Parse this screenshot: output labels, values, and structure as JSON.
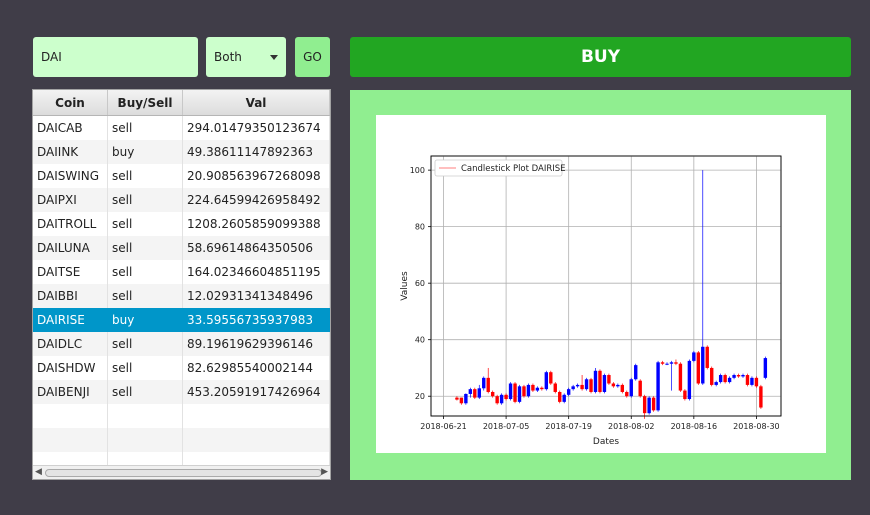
{
  "search": {
    "value": "DAI"
  },
  "filter": {
    "selected": "Both"
  },
  "go_label": "GO",
  "buy_label": "BUY",
  "colors": {
    "background": "#403d48",
    "buy": "#22a622",
    "panel": "#90ee90",
    "input": "#ccffcc",
    "selected_row": "#0096c9",
    "up_candle": "#0000ff",
    "down_candle": "#ff0000"
  },
  "table": {
    "headers": [
      "Coin",
      "Buy/Sell",
      "Val"
    ],
    "rows": [
      [
        "DAICAB",
        "sell",
        "294.01479350123674"
      ],
      [
        "DAIINK",
        "buy",
        "49.38611147892363"
      ],
      [
        "DAISWING",
        "sell",
        "20.908563967268098"
      ],
      [
        "DAIPXI",
        "sell",
        "224.64599426958492"
      ],
      [
        "DAITROLL",
        "sell",
        "1208.2605859099388"
      ],
      [
        "DAILUNA",
        "sell",
        "58.69614864350506"
      ],
      [
        "DAITSE",
        "sell",
        "164.02346604851195"
      ],
      [
        "DAIBBI",
        "sell",
        "12.02931341348496"
      ],
      [
        "DAIRISE",
        "buy",
        "33.59556735937983"
      ],
      [
        "DAIDLC",
        "sell",
        "89.19619629396146"
      ],
      [
        "DAISHDW",
        "sell",
        "82.62985540002144"
      ],
      [
        "DAIBENJI",
        "sell",
        "453.20591917426964"
      ]
    ],
    "selected_index": 8,
    "empty_rows": 3
  },
  "chart_data": {
    "type": "candlestick",
    "legend": "Candlestick Plot DAIRISE",
    "legend_position": "top-left",
    "xlabel": "Dates",
    "ylabel": "Values",
    "x_ticks": [
      "2018-06-21",
      "2018-07-05",
      "2018-07-19",
      "2018-08-02",
      "2018-08-16",
      "2018-08-30"
    ],
    "y_ticks": [
      20,
      40,
      60,
      80,
      100
    ],
    "ylim": [
      13,
      105
    ],
    "grid": true,
    "start_date": "2018-06-21",
    "candles": [
      {
        "date": "2018-06-24",
        "open": 19.5,
        "close": 18.8,
        "high": 20.0,
        "low": 18.5
      },
      {
        "date": "2018-06-25",
        "open": 19.5,
        "close": 17.5,
        "high": 19.5,
        "low": 17.0
      },
      {
        "date": "2018-06-26",
        "open": 17.5,
        "close": 20.8,
        "high": 21.0,
        "low": 17.0
      },
      {
        "date": "2018-06-27",
        "open": 20.8,
        "close": 22.5,
        "high": 23.0,
        "low": 19.5
      },
      {
        "date": "2018-06-28",
        "open": 22.5,
        "close": 19.5,
        "high": 23.0,
        "low": 19.0
      },
      {
        "date": "2018-06-29",
        "open": 19.5,
        "close": 22.8,
        "high": 24.0,
        "low": 19.0
      },
      {
        "date": "2018-06-30",
        "open": 22.8,
        "close": 26.5,
        "high": 27.0,
        "low": 22.0
      },
      {
        "date": "2018-07-01",
        "open": 26.5,
        "close": 21.5,
        "high": 30.0,
        "low": 21.0
      },
      {
        "date": "2018-07-02",
        "open": 21.5,
        "close": 20.0,
        "high": 22.0,
        "low": 19.5
      },
      {
        "date": "2018-07-03",
        "open": 20.0,
        "close": 17.5,
        "high": 20.5,
        "low": 17.0
      },
      {
        "date": "2018-07-04",
        "open": 17.5,
        "close": 20.5,
        "high": 21.0,
        "low": 17.0
      },
      {
        "date": "2018-07-05",
        "open": 20.5,
        "close": 19.0,
        "high": 21.0,
        "low": 18.5
      },
      {
        "date": "2018-07-06",
        "open": 19.0,
        "close": 24.5,
        "high": 25.0,
        "low": 18.5
      },
      {
        "date": "2018-07-07",
        "open": 24.5,
        "close": 18.0,
        "high": 25.0,
        "low": 17.5
      },
      {
        "date": "2018-07-08",
        "open": 18.0,
        "close": 23.5,
        "high": 24.0,
        "low": 17.5
      },
      {
        "date": "2018-07-09",
        "open": 23.5,
        "close": 20.0,
        "high": 24.0,
        "low": 19.5
      },
      {
        "date": "2018-07-10",
        "open": 20.0,
        "close": 24.0,
        "high": 24.5,
        "low": 19.5
      },
      {
        "date": "2018-07-11",
        "open": 24.0,
        "close": 22.0,
        "high": 24.5,
        "low": 21.5
      },
      {
        "date": "2018-07-12",
        "open": 22.0,
        "close": 23.0,
        "high": 23.5,
        "low": 21.5
      },
      {
        "date": "2018-07-13",
        "open": 23.0,
        "close": 22.5,
        "high": 23.5,
        "low": 22.0
      },
      {
        "date": "2018-07-14",
        "open": 22.5,
        "close": 28.5,
        "high": 29.0,
        "low": 22.0
      },
      {
        "date": "2018-07-15",
        "open": 28.5,
        "close": 24.5,
        "high": 29.0,
        "low": 24.0
      },
      {
        "date": "2018-07-16",
        "open": 24.5,
        "close": 21.5,
        "high": 25.0,
        "low": 21.0
      },
      {
        "date": "2018-07-17",
        "open": 21.5,
        "close": 18.0,
        "high": 22.0,
        "low": 17.5
      },
      {
        "date": "2018-07-18",
        "open": 18.0,
        "close": 20.5,
        "high": 21.0,
        "low": 17.5
      },
      {
        "date": "2018-07-19",
        "open": 20.5,
        "close": 22.5,
        "high": 23.0,
        "low": 20.0
      },
      {
        "date": "2018-07-20",
        "open": 22.5,
        "close": 23.5,
        "high": 24.0,
        "low": 22.0
      },
      {
        "date": "2018-07-21",
        "open": 23.5,
        "close": 24.0,
        "high": 24.5,
        "low": 23.0
      },
      {
        "date": "2018-07-22",
        "open": 24.0,
        "close": 22.5,
        "high": 27.5,
        "low": 22.0
      },
      {
        "date": "2018-07-23",
        "open": 22.5,
        "close": 26.0,
        "high": 26.5,
        "low": 22.0
      },
      {
        "date": "2018-07-24",
        "open": 26.0,
        "close": 21.5,
        "high": 26.5,
        "low": 21.0
      },
      {
        "date": "2018-07-25",
        "open": 21.5,
        "close": 29.0,
        "high": 30.0,
        "low": 21.0
      },
      {
        "date": "2018-07-26",
        "open": 29.0,
        "close": 21.5,
        "high": 29.5,
        "low": 21.0
      },
      {
        "date": "2018-07-27",
        "open": 21.5,
        "close": 27.5,
        "high": 28.0,
        "low": 21.0
      },
      {
        "date": "2018-07-28",
        "open": 27.5,
        "close": 24.5,
        "high": 28.0,
        "low": 24.0
      },
      {
        "date": "2018-07-29",
        "open": 24.5,
        "close": 23.5,
        "high": 25.0,
        "low": 23.0
      },
      {
        "date": "2018-07-30",
        "open": 23.5,
        "close": 24.0,
        "high": 24.5,
        "low": 23.0
      },
      {
        "date": "2018-07-31",
        "open": 24.0,
        "close": 21.5,
        "high": 24.5,
        "low": 21.0
      },
      {
        "date": "2018-08-01",
        "open": 21.5,
        "close": 20.0,
        "high": 22.0,
        "low": 19.5
      },
      {
        "date": "2018-08-02",
        "open": 20.0,
        "close": 26.0,
        "high": 26.5,
        "low": 19.5
      },
      {
        "date": "2018-08-03",
        "open": 26.0,
        "close": 31.0,
        "high": 31.5,
        "low": 25.5
      },
      {
        "date": "2018-08-04",
        "open": 25.5,
        "close": 20.0,
        "high": 26.0,
        "low": 19.5
      },
      {
        "date": "2018-08-05",
        "open": 20.0,
        "close": 14.0,
        "high": 20.5,
        "low": 12.0
      },
      {
        "date": "2018-08-06",
        "open": 14.0,
        "close": 19.5,
        "high": 20.0,
        "low": 13.5
      },
      {
        "date": "2018-08-07",
        "open": 19.5,
        "close": 15.0,
        "high": 20.0,
        "low": 14.5
      },
      {
        "date": "2018-08-08",
        "open": 15.0,
        "close": 32.0,
        "high": 32.5,
        "low": 14.5
      },
      {
        "date": "2018-08-09",
        "open": 32.0,
        "close": 31.5,
        "high": 32.5,
        "low": 31.0
      },
      {
        "date": "2018-08-10",
        "open": 31.5,
        "close": 31.5,
        "high": 32.0,
        "low": 31.0
      },
      {
        "date": "2018-08-11",
        "open": 31.5,
        "close": 32.0,
        "high": 32.5,
        "low": 22.0
      },
      {
        "date": "2018-08-12",
        "open": 32.0,
        "close": 31.5,
        "high": 33.0,
        "low": 31.0
      },
      {
        "date": "2018-08-13",
        "open": 31.5,
        "close": 22.0,
        "high": 32.0,
        "low": 21.5
      },
      {
        "date": "2018-08-14",
        "open": 22.0,
        "close": 19.0,
        "high": 22.5,
        "low": 18.5
      },
      {
        "date": "2018-08-15",
        "open": 19.0,
        "close": 32.5,
        "high": 33.0,
        "low": 18.5
      },
      {
        "date": "2018-08-16",
        "open": 32.5,
        "close": 35.5,
        "high": 36.0,
        "low": 32.0
      },
      {
        "date": "2018-08-17",
        "open": 35.5,
        "close": 24.5,
        "high": 36.0,
        "low": 24.0
      },
      {
        "date": "2018-08-18",
        "open": 24.5,
        "close": 37.5,
        "high": 100.0,
        "low": 24.0
      },
      {
        "date": "2018-08-19",
        "open": 37.5,
        "close": 30.0,
        "high": 38.0,
        "low": 29.5
      },
      {
        "date": "2018-08-20",
        "open": 30.0,
        "close": 24.0,
        "high": 30.5,
        "low": 23.5
      },
      {
        "date": "2018-08-21",
        "open": 24.0,
        "close": 25.0,
        "high": 25.5,
        "low": 23.5
      },
      {
        "date": "2018-08-22",
        "open": 25.0,
        "close": 27.5,
        "high": 28.0,
        "low": 24.5
      },
      {
        "date": "2018-08-23",
        "open": 27.5,
        "close": 25.0,
        "high": 28.0,
        "low": 24.5
      },
      {
        "date": "2018-08-24",
        "open": 25.0,
        "close": 26.5,
        "high": 27.0,
        "low": 24.5
      },
      {
        "date": "2018-08-25",
        "open": 26.5,
        "close": 27.5,
        "high": 28.0,
        "low": 26.0
      },
      {
        "date": "2018-08-26",
        "open": 27.5,
        "close": 27.0,
        "high": 28.0,
        "low": 26.5
      },
      {
        "date": "2018-08-27",
        "open": 27.0,
        "close": 27.5,
        "high": 28.0,
        "low": 26.5
      },
      {
        "date": "2018-08-28",
        "open": 27.5,
        "close": 24.0,
        "high": 28.0,
        "low": 23.5
      },
      {
        "date": "2018-08-29",
        "open": 24.0,
        "close": 26.5,
        "high": 27.0,
        "low": 23.5
      },
      {
        "date": "2018-08-30",
        "open": 26.5,
        "close": 23.5,
        "high": 27.0,
        "low": 23.0
      },
      {
        "date": "2018-08-31",
        "open": 23.5,
        "close": 16.0,
        "high": 24.0,
        "low": 15.5
      },
      {
        "date": "2018-09-01",
        "open": 26.5,
        "close": 33.5,
        "high": 34.0,
        "low": 26.0
      }
    ]
  }
}
